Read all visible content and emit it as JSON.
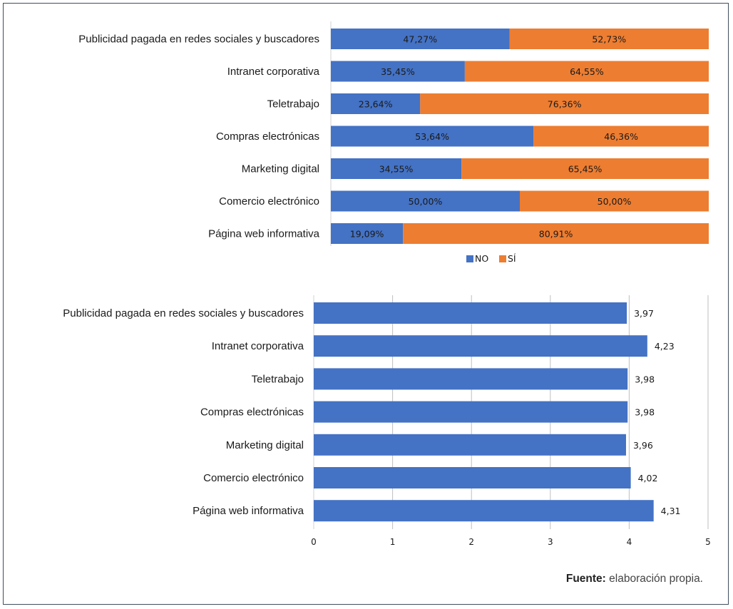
{
  "chart_data": [
    {
      "type": "bar",
      "orientation": "horizontal",
      "stacked": "percent",
      "categories": [
        "Publicidad pagada en redes sociales y buscadores",
        "Intranet corporativa",
        "Teletrabajo",
        "Compras electrónicas",
        "Marketing digital",
        "Comercio electrónico",
        "Página web informativa"
      ],
      "series": [
        {
          "name": "NO",
          "color": "#4472c4",
          "values": [
            47.27,
            35.45,
            23.64,
            53.64,
            34.55,
            50.0,
            19.09
          ],
          "labels": [
            "47,27%",
            "35,45%",
            "23,64%",
            "53,64%",
            "34,55%",
            "50,00%",
            "19,09%"
          ]
        },
        {
          "name": "SÍ",
          "color": "#ed7d31",
          "values": [
            52.73,
            64.55,
            76.36,
            46.36,
            65.45,
            50.0,
            80.91
          ],
          "labels": [
            "52,73%",
            "64,55%",
            "76,36%",
            "46,36%",
            "65,45%",
            "50,00%",
            "80,91%"
          ]
        }
      ],
      "legend": "bottom",
      "xlim": [
        0,
        100
      ],
      "grid": false
    },
    {
      "type": "bar",
      "orientation": "horizontal",
      "categories": [
        "Publicidad pagada en redes sociales y buscadores",
        "Intranet corporativa",
        "Teletrabajo",
        "Compras electrónicas",
        "Marketing digital",
        "Comercio electrónico",
        "Página web informativa"
      ],
      "values": [
        3.97,
        4.23,
        3.98,
        3.98,
        3.96,
        4.02,
        4.31
      ],
      "labels": [
        "3,97",
        "4,23",
        "3,98",
        "3,98",
        "3,96",
        "4,02",
        "4,31"
      ],
      "color": "#4472c4",
      "xlim": [
        0,
        5
      ],
      "xticks": [
        "0",
        "1",
        "2",
        "3",
        "4",
        "5"
      ],
      "grid": true
    }
  ],
  "source": {
    "label": "Fuente:",
    "text": " elaboración propia."
  }
}
